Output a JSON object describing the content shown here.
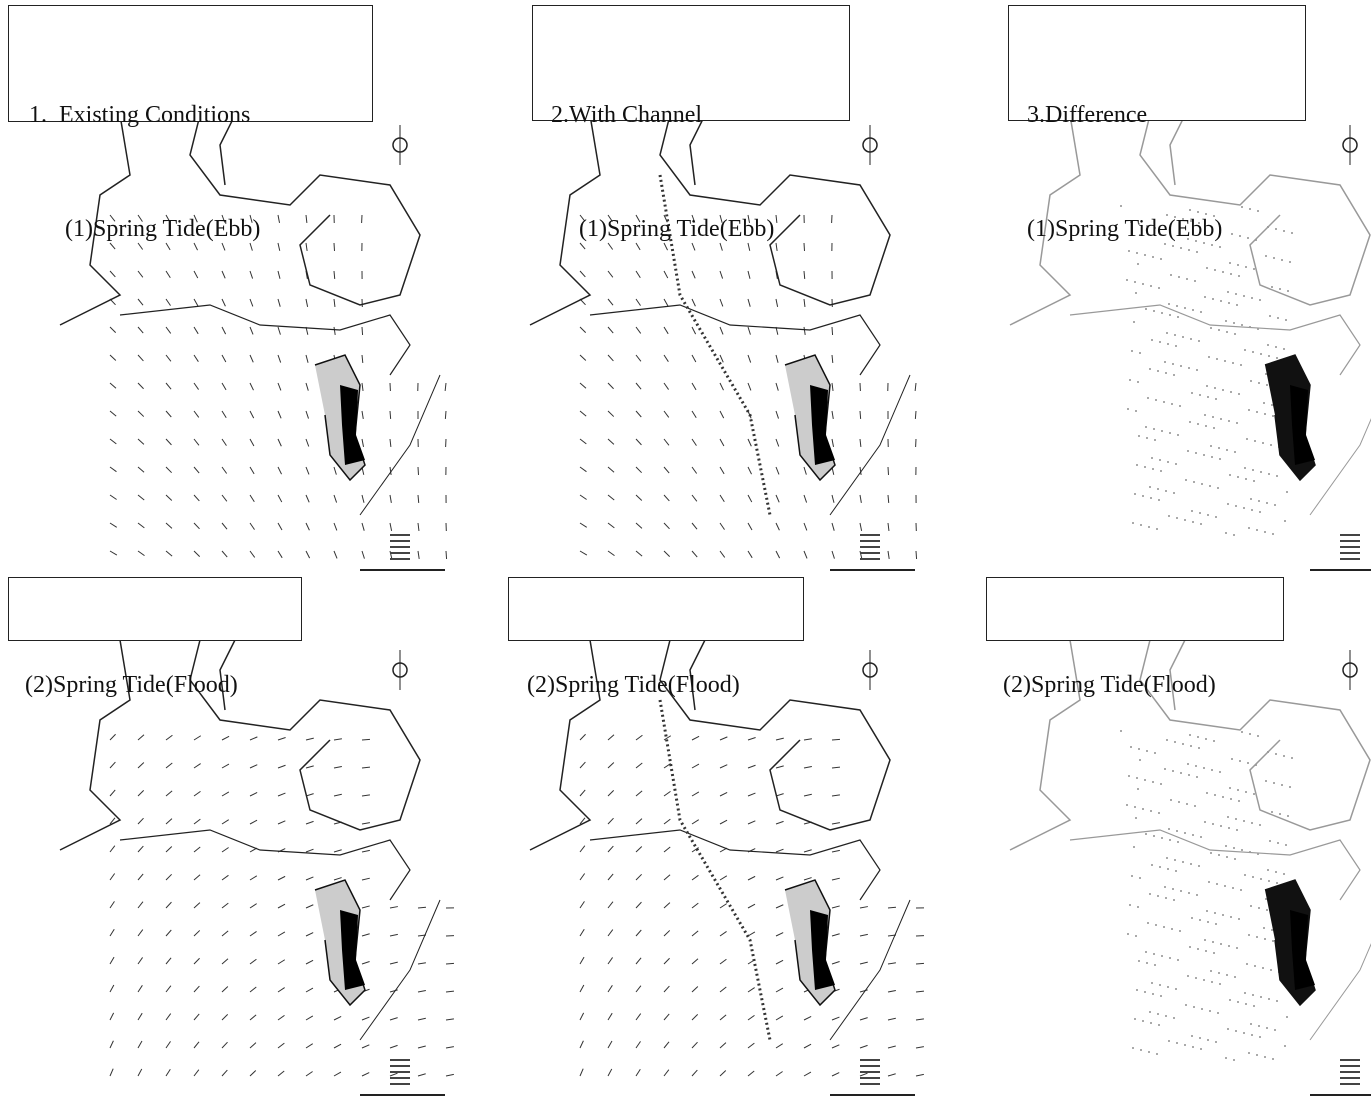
{
  "top_panels": [
    {
      "title": "1.  Existing Conditions",
      "case": "(1)Spring Tide(Ebb)"
    },
    {
      "title": "2.With Channel",
      "case": "(1)Spring Tide(Ebb)"
    },
    {
      "title": "3.Difference",
      "case": "(1)Spring Tide(Ebb)"
    }
  ],
  "bottom_panels": [
    {
      "case": "(2)Spring Tide(Flood)"
    },
    {
      "case": "(2)Spring Tide(Flood)"
    },
    {
      "case": "(2)Spring Tide(Flood)"
    }
  ]
}
